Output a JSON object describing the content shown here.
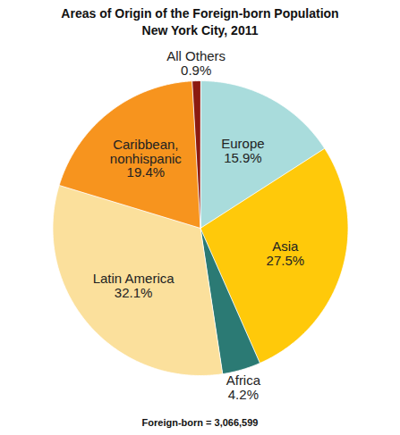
{
  "chart_data": {
    "type": "pie",
    "title": "Areas of Origin of the Foreign-born Population",
    "subtitle": "New York City, 2011",
    "caption": "Foreign-born = 3,066,599",
    "categories": [
      "Europe",
      "Asia",
      "Africa",
      "Latin America",
      "Caribbean, nonhispanic",
      "All Others"
    ],
    "values": [
      15.9,
      27.5,
      4.2,
      32.1,
      19.4,
      0.9
    ],
    "value_labels": [
      "15.9%",
      "27.5%",
      "4.2%",
      "32.1%",
      "19.4%",
      "0.9%"
    ],
    "colors": [
      "#a9dcdc",
      "#ffc90a",
      "#2b7a74",
      "#fbe09c",
      "#f7941e",
      "#8b1a10"
    ],
    "data_labels": true
  }
}
